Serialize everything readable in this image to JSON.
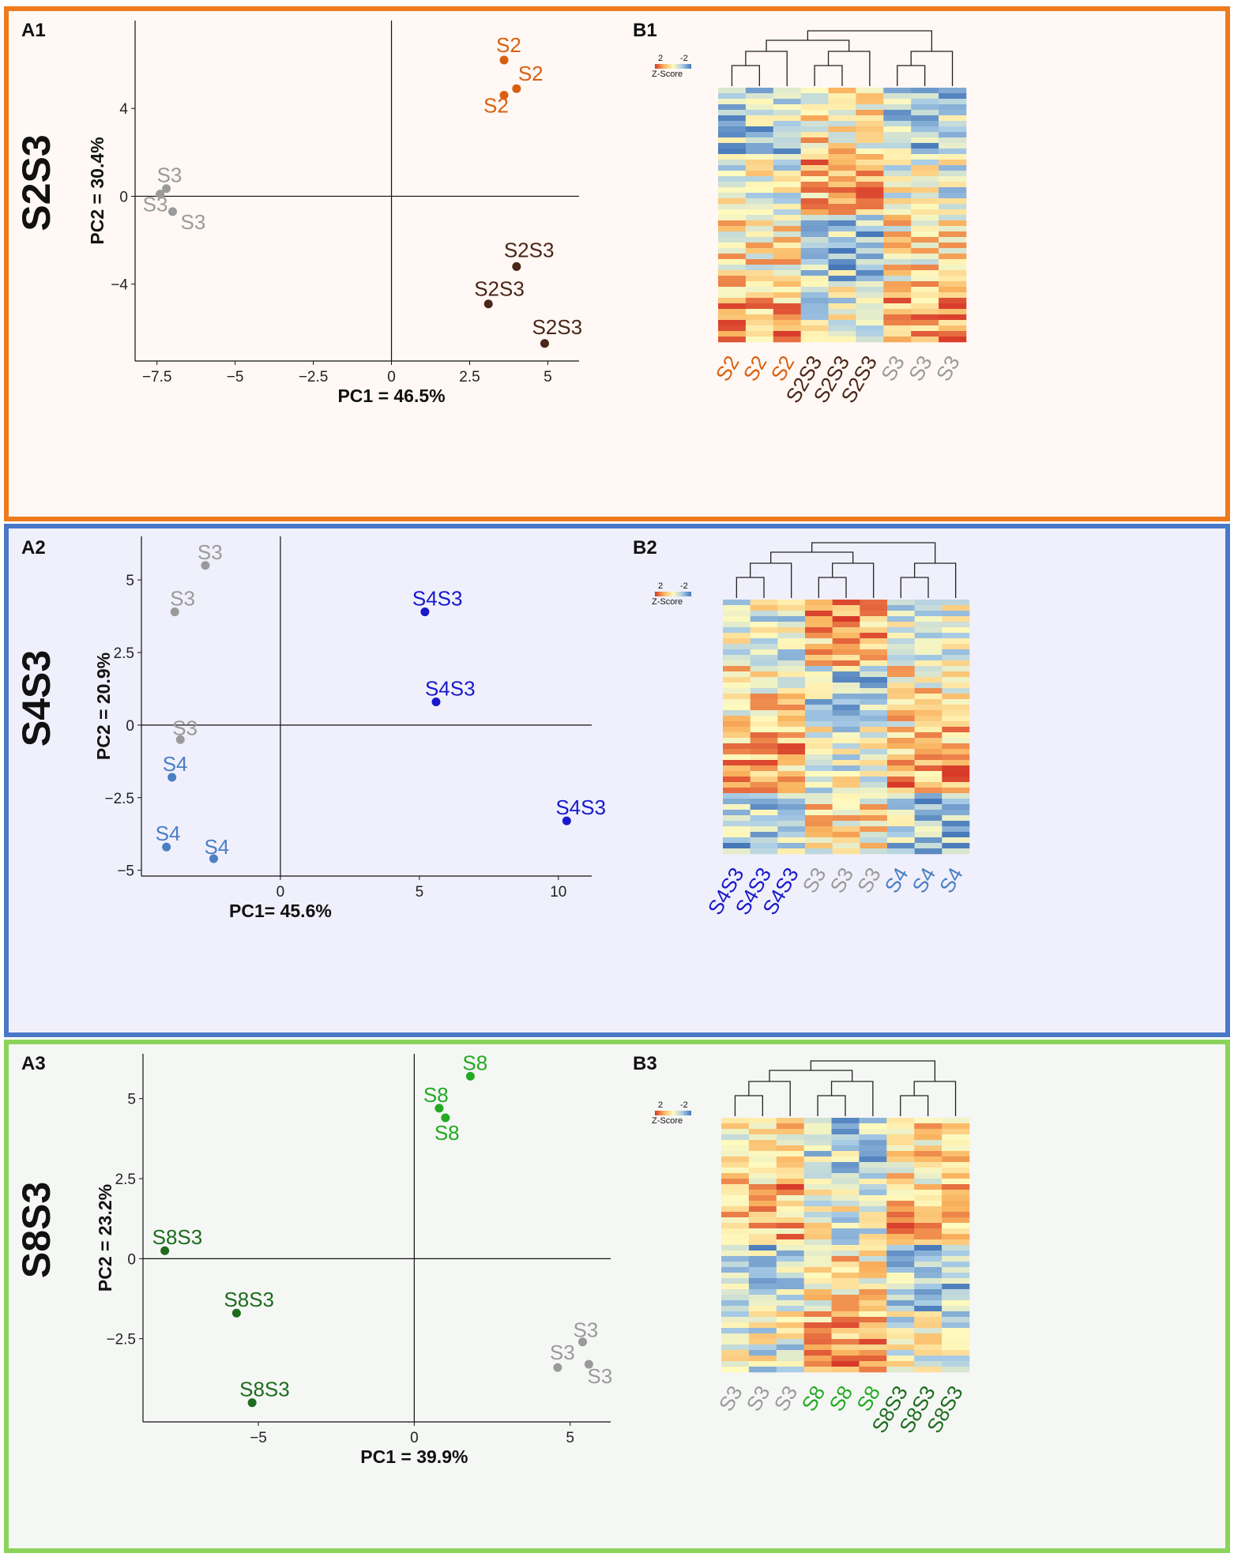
{
  "chart_data": [
    {
      "type": "scatter",
      "row_label": "S2S3",
      "pca_label": "A1",
      "heatmap_label": "B1",
      "xlabel": "PC1 = 46.5%",
      "ylabel": "PC2 = 30.4%",
      "xlim": [
        -8.2,
        6.0
      ],
      "ylim": [
        -7.5,
        8.0
      ],
      "xticks": [
        -7.5,
        -5,
        -2.5,
        0,
        2.5,
        5
      ],
      "xtick_labels": [
        "−7.5",
        "−5",
        "−2.5",
        "0",
        "2.5",
        "5"
      ],
      "yticks": [
        4,
        0,
        -4
      ],
      "ytick_labels": [
        "4",
        "0",
        "−4"
      ],
      "points": [
        {
          "label": "S2",
          "x": 3.6,
          "y": 6.2,
          "color": "#d95f0e"
        },
        {
          "label": "S2",
          "x": 4.0,
          "y": 4.9,
          "color": "#d95f0e"
        },
        {
          "label": "S2",
          "x": 3.6,
          "y": 4.6,
          "color": "#d95f0e"
        },
        {
          "label": "S3",
          "x": -7.2,
          "y": 0.35,
          "color": "#9a9a9a"
        },
        {
          "label": "S3",
          "x": -7.4,
          "y": 0.1,
          "color": "#9a9a9a"
        },
        {
          "label": "S3",
          "x": -7.0,
          "y": -0.7,
          "color": "#9a9a9a"
        },
        {
          "label": "S2S3",
          "x": 4.0,
          "y": -3.2,
          "color": "#4a2518"
        },
        {
          "label": "S2S3",
          "x": 3.1,
          "y": -4.9,
          "color": "#4a2518"
        },
        {
          "label": "S2S3",
          "x": 4.9,
          "y": -6.7,
          "color": "#4a2518"
        }
      ],
      "heatmap": {
        "legend_high": "2",
        "legend_low": "-2",
        "legend_title": "Z-Score",
        "columns": [
          {
            "label": "S2",
            "color": "#d95f0e"
          },
          {
            "label": "S2",
            "color": "#d95f0e"
          },
          {
            "label": "S2",
            "color": "#d95f0e"
          },
          {
            "label": "S2S3",
            "color": "#4a2518"
          },
          {
            "label": "S2S3",
            "color": "#4a2518"
          },
          {
            "label": "S2S3",
            "color": "#4a2518"
          },
          {
            "label": "S3",
            "color": "#9a9a9a"
          },
          {
            "label": "S3",
            "color": "#9a9a9a"
          },
          {
            "label": "S3",
            "color": "#9a9a9a"
          }
        ]
      }
    },
    {
      "type": "scatter",
      "row_label": "S4S3",
      "pca_label": "A2",
      "heatmap_label": "B2",
      "xlabel": "PC1= 45.6%",
      "ylabel": "PC2 = 20.9%",
      "xlim": [
        -5.0,
        11.2
      ],
      "ylim": [
        -5.2,
        6.5
      ],
      "xticks": [
        0,
        5,
        10
      ],
      "xtick_labels": [
        "0",
        "5",
        "10"
      ],
      "yticks": [
        5,
        2.5,
        0,
        -2.5,
        -5
      ],
      "ytick_labels": [
        "5",
        "2.5",
        "0",
        "−2.5",
        "−5"
      ],
      "points": [
        {
          "label": "S3",
          "x": -2.7,
          "y": 5.5,
          "color": "#9a9a9a"
        },
        {
          "label": "S3",
          "x": -3.8,
          "y": 3.9,
          "color": "#9a9a9a"
        },
        {
          "label": "S3",
          "x": -3.6,
          "y": -0.5,
          "color": "#9a9a9a"
        },
        {
          "label": "S4",
          "x": -3.9,
          "y": -1.8,
          "color": "#4a7fc4"
        },
        {
          "label": "S4",
          "x": -4.1,
          "y": -4.2,
          "color": "#4a7fc4"
        },
        {
          "label": "S4",
          "x": -2.4,
          "y": -4.6,
          "color": "#4a7fc4"
        },
        {
          "label": "S4S3",
          "x": 5.2,
          "y": 3.9,
          "color": "#1818cc"
        },
        {
          "label": "S4S3",
          "x": 5.6,
          "y": 0.8,
          "color": "#1818cc"
        },
        {
          "label": "S4S3",
          "x": 10.3,
          "y": -3.3,
          "color": "#1818cc"
        }
      ],
      "heatmap": {
        "legend_high": "2",
        "legend_low": "-2",
        "legend_title": "Z-Score",
        "columns": [
          {
            "label": "S4S3",
            "color": "#1818cc"
          },
          {
            "label": "S4S3",
            "color": "#1818cc"
          },
          {
            "label": "S4S3",
            "color": "#1818cc"
          },
          {
            "label": "S3",
            "color": "#9a9a9a"
          },
          {
            "label": "S3",
            "color": "#9a9a9a"
          },
          {
            "label": "S3",
            "color": "#9a9a9a"
          },
          {
            "label": "S4",
            "color": "#4a7fc4"
          },
          {
            "label": "S4",
            "color": "#4a7fc4"
          },
          {
            "label": "S4",
            "color": "#4a7fc4"
          }
        ]
      }
    },
    {
      "type": "scatter",
      "row_label": "S8S3",
      "pca_label": "A3",
      "heatmap_label": "B3",
      "xlabel": "PC1 = 39.9%",
      "ylabel": "PC2 = 23.2%",
      "xlim": [
        -8.7,
        6.3
      ],
      "ylim": [
        -5.1,
        6.4
      ],
      "xticks": [
        -5,
        0,
        5
      ],
      "xtick_labels": [
        "−5",
        "0",
        "5"
      ],
      "yticks": [
        5,
        2.5,
        0,
        -2.5
      ],
      "ytick_labels": [
        "5",
        "2.5",
        "0",
        "−2.5"
      ],
      "points": [
        {
          "label": "S8",
          "x": 1.8,
          "y": 5.7,
          "color": "#22aa22"
        },
        {
          "label": "S8",
          "x": 0.8,
          "y": 4.7,
          "color": "#22aa22"
        },
        {
          "label": "S8",
          "x": 1.0,
          "y": 4.4,
          "color": "#22aa22"
        },
        {
          "label": "S8S3",
          "x": -8.0,
          "y": 0.25,
          "color": "#1e6b1e"
        },
        {
          "label": "S8S3",
          "x": -5.7,
          "y": -1.7,
          "color": "#1e6b1e"
        },
        {
          "label": "S8S3",
          "x": -5.2,
          "y": -4.5,
          "color": "#1e6b1e"
        },
        {
          "label": "S3",
          "x": 5.4,
          "y": -2.6,
          "color": "#9a9a9a"
        },
        {
          "label": "S3",
          "x": 4.6,
          "y": -3.4,
          "color": "#9a9a9a"
        },
        {
          "label": "S3",
          "x": 5.6,
          "y": -3.3,
          "color": "#9a9a9a"
        }
      ],
      "heatmap": {
        "legend_high": "2",
        "legend_low": "-2",
        "legend_title": "Z-Score",
        "columns": [
          {
            "label": "S3",
            "color": "#9a9a9a"
          },
          {
            "label": "S3",
            "color": "#9a9a9a"
          },
          {
            "label": "S3",
            "color": "#9a9a9a"
          },
          {
            "label": "S8",
            "color": "#22aa22"
          },
          {
            "label": "S8",
            "color": "#22aa22"
          },
          {
            "label": "S8",
            "color": "#22aa22"
          },
          {
            "label": "S8S3",
            "color": "#1e6b1e"
          },
          {
            "label": "S8S3",
            "color": "#1e6b1e"
          },
          {
            "label": "S8S3",
            "color": "#1e6b1e"
          }
        ]
      }
    }
  ]
}
